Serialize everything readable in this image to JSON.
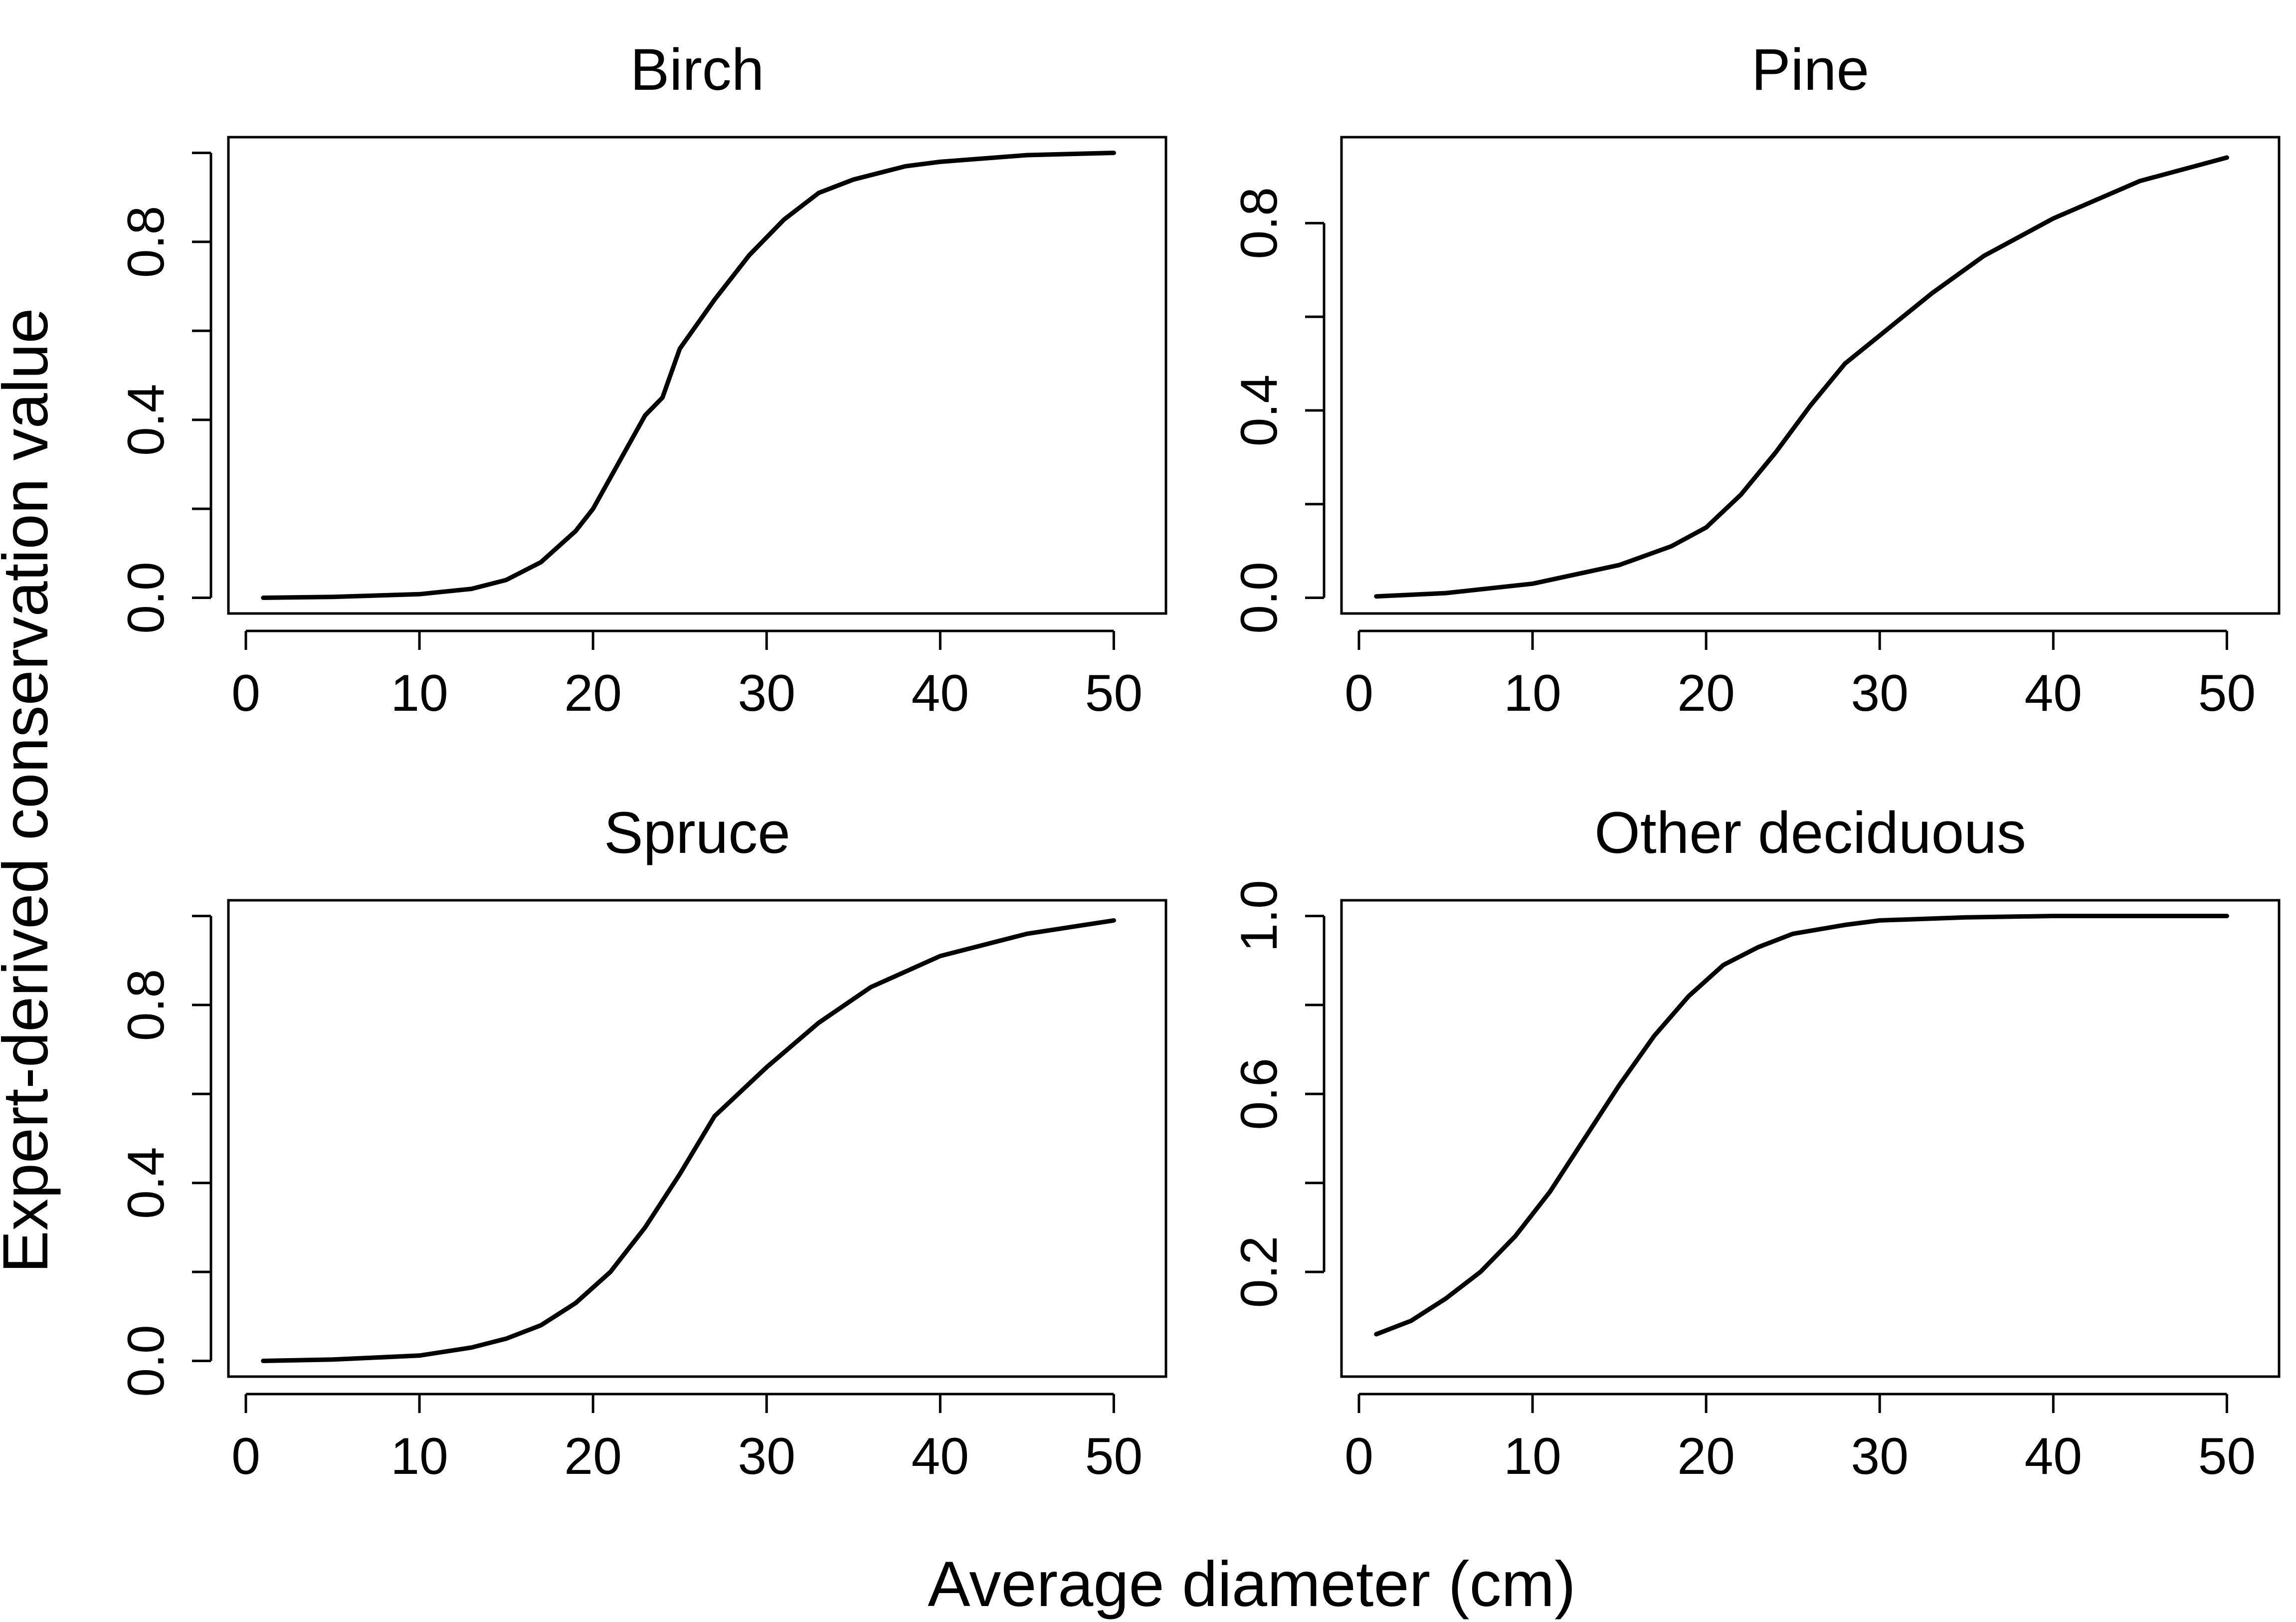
{
  "figure": {
    "ylabel": "Expert-derived conservation value",
    "xlabel": "Average diameter (cm)",
    "line_color": "#000000"
  },
  "chart_data": [
    {
      "type": "line",
      "title": "Birch",
      "xlim": [
        0,
        52
      ],
      "ylim": [
        0,
        1.0
      ],
      "x_ticks": [
        0,
        10,
        20,
        30,
        40,
        50
      ],
      "y_ticks": [
        0.0,
        0.2,
        0.4,
        0.6,
        0.8,
        1.0
      ],
      "y_tick_labels": [
        "0.0",
        "",
        "0.4",
        "",
        "0.8",
        ""
      ],
      "grid": false,
      "series": [
        {
          "x": [
            1,
            5,
            10,
            13,
            15,
            17,
            19,
            20,
            21,
            22,
            23,
            24,
            25,
            27,
            29,
            31,
            33,
            35,
            38,
            40,
            45,
            50
          ],
          "y": [
            0.0,
            0.002,
            0.008,
            0.02,
            0.04,
            0.08,
            0.15,
            0.2,
            0.27,
            0.34,
            0.41,
            0.45,
            0.56,
            0.67,
            0.77,
            0.85,
            0.91,
            0.94,
            0.97,
            0.98,
            0.995,
            1.0
          ]
        }
      ]
    },
    {
      "type": "line",
      "title": "Pine",
      "xlim": [
        0,
        52
      ],
      "ylim": [
        0,
        0.95
      ],
      "x_ticks": [
        0,
        10,
        20,
        30,
        40,
        50
      ],
      "y_ticks": [
        0.0,
        0.2,
        0.4,
        0.6,
        0.8
      ],
      "y_tick_labels": [
        "0.0",
        "",
        "0.4",
        "",
        "0.8"
      ],
      "grid": false,
      "series": [
        {
          "x": [
            1,
            5,
            10,
            15,
            18,
            20,
            22,
            24,
            26,
            28,
            30,
            33,
            36,
            40,
            45,
            50
          ],
          "y": [
            0.003,
            0.01,
            0.03,
            0.07,
            0.11,
            0.15,
            0.22,
            0.31,
            0.41,
            0.5,
            0.56,
            0.65,
            0.73,
            0.81,
            0.89,
            0.94
          ]
        }
      ]
    },
    {
      "type": "line",
      "title": "Spruce",
      "xlim": [
        0,
        52
      ],
      "ylim": [
        0,
        1.0
      ],
      "x_ticks": [
        0,
        10,
        20,
        30,
        40,
        50
      ],
      "y_ticks": [
        0.0,
        0.2,
        0.4,
        0.6,
        0.8,
        1.0
      ],
      "y_tick_labels": [
        "0.0",
        "",
        "0.4",
        "",
        "0.8",
        ""
      ],
      "grid": false,
      "series": [
        {
          "x": [
            1,
            5,
            10,
            13,
            15,
            17,
            19,
            21,
            23,
            25,
            27,
            30,
            33,
            36,
            40,
            45,
            50
          ],
          "y": [
            0.0,
            0.003,
            0.012,
            0.03,
            0.05,
            0.08,
            0.13,
            0.2,
            0.3,
            0.42,
            0.55,
            0.66,
            0.76,
            0.84,
            0.91,
            0.96,
            0.99
          ]
        }
      ]
    },
    {
      "type": "line",
      "title": "Other deciduous",
      "xlim": [
        0,
        52
      ],
      "ylim": [
        0,
        1.0
      ],
      "x_ticks": [
        0,
        10,
        20,
        30,
        40,
        50
      ],
      "y_ticks": [
        0.2,
        0.4,
        0.6,
        0.8,
        1.0
      ],
      "y_tick_labels": [
        "0.2",
        "",
        "0.6",
        "",
        "1.0"
      ],
      "grid": false,
      "series": [
        {
          "x": [
            1,
            3,
            5,
            7,
            9,
            11,
            13,
            15,
            17,
            19,
            21,
            23,
            25,
            28,
            30,
            35,
            40,
            50
          ],
          "y": [
            0.06,
            0.09,
            0.14,
            0.2,
            0.28,
            0.38,
            0.5,
            0.62,
            0.73,
            0.82,
            0.89,
            0.93,
            0.96,
            0.98,
            0.99,
            0.997,
            1.0,
            1.0
          ]
        }
      ]
    }
  ]
}
